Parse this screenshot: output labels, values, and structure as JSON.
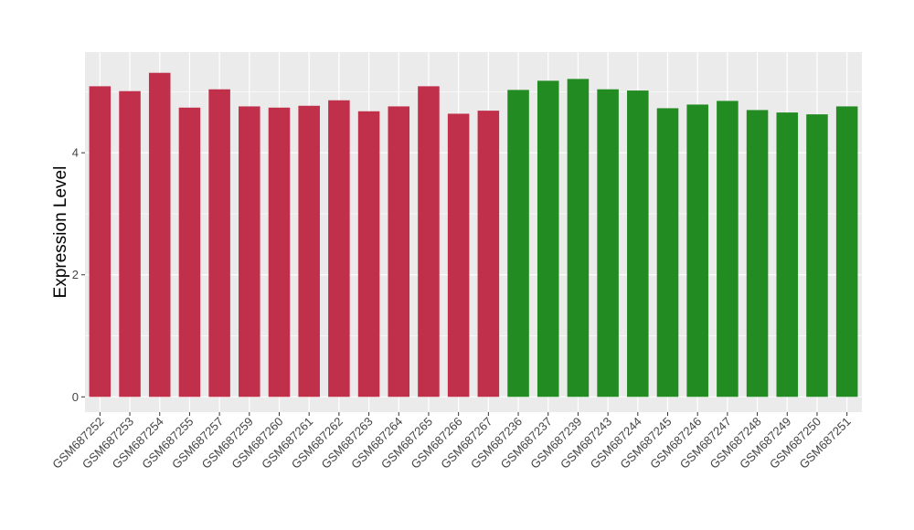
{
  "chart_data": {
    "type": "bar",
    "title": "",
    "xlabel": "",
    "ylabel": "Expression Level",
    "ylim": [
      -0.25,
      5.65
    ],
    "yticks": [
      0,
      2,
      4
    ],
    "grid": true,
    "legend": "none",
    "categories": [
      "GSM687252",
      "GSM687253",
      "GSM687254",
      "GSM687255",
      "GSM687257",
      "GSM687259",
      "GSM687260",
      "GSM687261",
      "GSM687262",
      "GSM687263",
      "GSM687264",
      "GSM687265",
      "GSM687266",
      "GSM687267",
      "GSM687236",
      "GSM687237",
      "GSM687239",
      "GSM687243",
      "GSM687244",
      "GSM687245",
      "GSM687246",
      "GSM687247",
      "GSM687248",
      "GSM687249",
      "GSM687250",
      "GSM687251"
    ],
    "values": [
      5.09,
      5.01,
      5.31,
      4.74,
      5.04,
      4.76,
      4.74,
      4.77,
      4.86,
      4.68,
      4.76,
      5.09,
      4.64,
      4.69,
      5.03,
      5.18,
      5.21,
      5.04,
      5.02,
      4.73,
      4.79,
      4.85,
      4.7,
      4.66,
      4.63,
      4.76
    ],
    "bar_colors": [
      "#c1304a",
      "#c1304a",
      "#c1304a",
      "#c1304a",
      "#c1304a",
      "#c1304a",
      "#c1304a",
      "#c1304a",
      "#c1304a",
      "#c1304a",
      "#c1304a",
      "#c1304a",
      "#c1304a",
      "#c1304a",
      "#228b22",
      "#228b22",
      "#228b22",
      "#228b22",
      "#228b22",
      "#228b22",
      "#228b22",
      "#228b22",
      "#228b22",
      "#228b22",
      "#228b22",
      "#228b22"
    ],
    "panel_background": "#ebebeb",
    "gridline_color": "#ffffff"
  }
}
